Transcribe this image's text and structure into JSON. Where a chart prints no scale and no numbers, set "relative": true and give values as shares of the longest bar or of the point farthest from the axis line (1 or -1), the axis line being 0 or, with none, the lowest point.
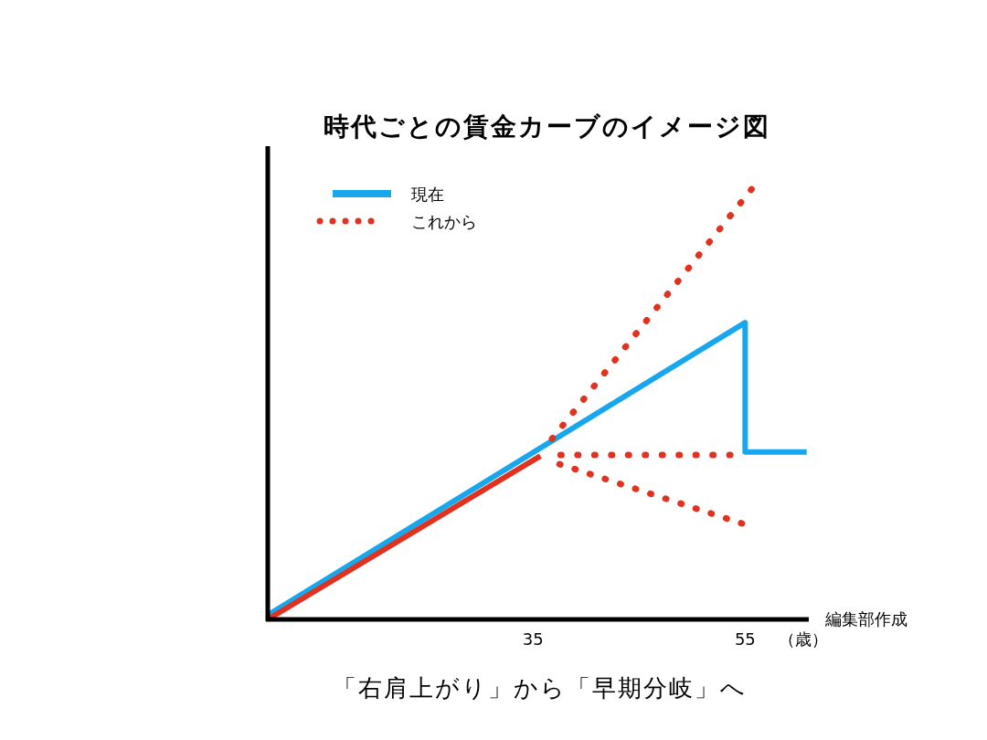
{
  "chart_data": {
    "type": "line",
    "title": "時代ごとの賃金カーブのイメージ図",
    "xlabel": "（歳）",
    "relative": true,
    "xlim": [
      10,
      61
    ],
    "xticks": [
      35,
      55
    ],
    "grid": false,
    "legend": "top left",
    "annotations": [
      "編集部作成",
      "「右肩上がり」から「早期分岐」へ"
    ],
    "series": [
      {
        "name": "現在",
        "color": "#18a7ec",
        "line_style": "solid",
        "x": [
          10,
          55,
          55,
          60.8
        ],
        "values": [
          0.01,
          0.69,
          0.389,
          0.389
        ]
      },
      {
        "name": "これから",
        "color": "#e0321e",
        "line_style": "dotted",
        "x": [
          36.8,
          55.6
        ],
        "values": [
          0.42,
          1
        ]
      },
      {
        "color": "#e0321e",
        "line_style": "solid",
        "x": [
          10,
          35.7
        ],
        "values": [
          0,
          0.38
        ]
      },
      {
        "color": "#e0321e",
        "line_style": "dotted",
        "x": [
          37.6,
          53.6
        ],
        "values": [
          0.382,
          0.382
        ]
      },
      {
        "color": "#e0321e",
        "line_style": "dotted",
        "x": [
          37.5,
          54.7
        ],
        "values": [
          0.361,
          0.223
        ]
      }
    ]
  }
}
